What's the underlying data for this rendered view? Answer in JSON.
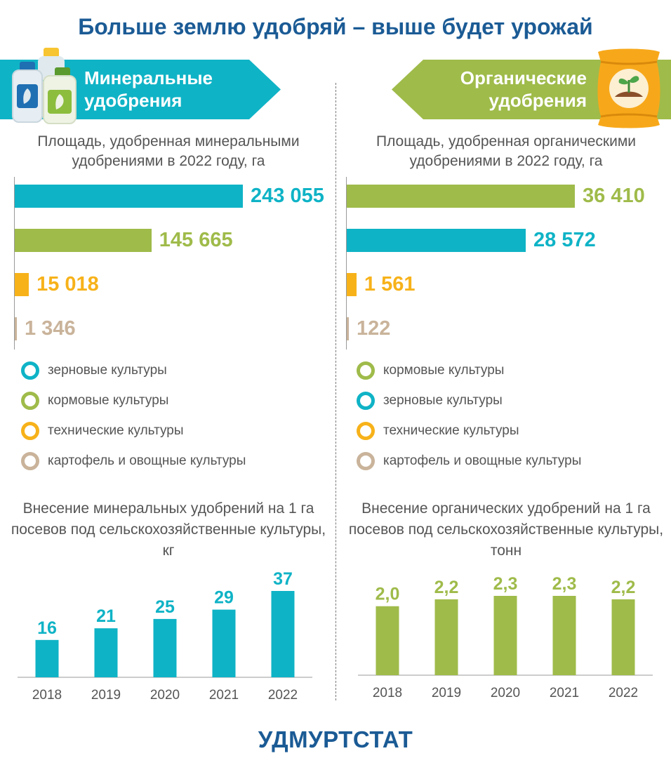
{
  "title": "Больше землю удобряй – выше будет урожай",
  "footer": "УДМУРТСТАТ",
  "colors": {
    "title": "#1b5b95",
    "teal": "#0fb3c6",
    "green": "#9fbb4a",
    "orange": "#f7b21a",
    "beige": "#c9b39a"
  },
  "mineral": {
    "banner": "Минеральные удобрения",
    "icon": "fertilizer-bottles-icon",
    "area_title": "Площадь, удобренная минеральными удобрениями в 2022 году, га",
    "legend": [
      {
        "label": "зерновые культуры",
        "color": "#0fb3c6"
      },
      {
        "label": "кормовые культуры",
        "color": "#9fbb4a"
      },
      {
        "label": "технические культуры",
        "color": "#f7b21a"
      },
      {
        "label": "картофель и овощные культуры",
        "color": "#c9b39a"
      }
    ],
    "per_ha_title": "Внесение минеральных удобрений на 1 га посевов под сельскохозяйственные культуры, кг"
  },
  "organic": {
    "banner": "Органические удобрения",
    "icon": "fertilizer-bag-icon",
    "area_title": "Площадь, удобренная органическими удобрениями в 2022 году, га",
    "legend": [
      {
        "label": "кормовые культуры",
        "color": "#9fbb4a"
      },
      {
        "label": "зерновые культуры",
        "color": "#0fb3c6"
      },
      {
        "label": "технические культуры",
        "color": "#f7b21a"
      },
      {
        "label": "картофель и овощные культуры",
        "color": "#c9b39a"
      }
    ],
    "per_ha_title": "Внесение органических удобрений на 1 га посевов под сельскохозяйственные культуры, тонн"
  },
  "chart_data": [
    {
      "type": "bar",
      "orientation": "horizontal",
      "title": "Площадь, удобренная минеральными удобрениями в 2022 году, га",
      "categories": [
        "зерновые культуры",
        "кормовые культуры",
        "технические культуры",
        "картофель и овощные культуры"
      ],
      "values": [
        243055,
        145665,
        15018,
        1346
      ],
      "value_labels": [
        "243 055",
        "145 665",
        "15 018",
        "1 346"
      ],
      "colors": [
        "#0fb3c6",
        "#9fbb4a",
        "#f7b21a",
        "#c9b39a"
      ]
    },
    {
      "type": "bar",
      "orientation": "horizontal",
      "title": "Площадь, удобренная органическими удобрениями в 2022 году, га",
      "categories": [
        "кормовые культуры",
        "зерновые культуры",
        "технические культуры",
        "картофель и овощные культуры"
      ],
      "values": [
        36410,
        28572,
        1561,
        122
      ],
      "value_labels": [
        "36 410",
        "28 572",
        "1 561",
        "122"
      ],
      "colors": [
        "#9fbb4a",
        "#0fb3c6",
        "#f7b21a",
        "#c9b39a"
      ]
    },
    {
      "type": "bar",
      "title": "Внесение минеральных удобрений на 1 га посевов под сельскохозяйственные культуры, кг",
      "categories": [
        "2018",
        "2019",
        "2020",
        "2021",
        "2022"
      ],
      "values": [
        16,
        21,
        25,
        29,
        37
      ],
      "value_labels": [
        "16",
        "21",
        "25",
        "29",
        "37"
      ],
      "color": "#0fb3c6",
      "ylim": [
        0,
        37
      ]
    },
    {
      "type": "bar",
      "title": "Внесение органических удобрений на 1 га посевов под сельскохозяйственные культуры, тонн",
      "categories": [
        "2018",
        "2019",
        "2020",
        "2021",
        "2022"
      ],
      "values": [
        2.0,
        2.2,
        2.3,
        2.3,
        2.2
      ],
      "value_labels": [
        "2,0",
        "2,2",
        "2,3",
        "2,3",
        "2,2"
      ],
      "color": "#9fbb4a",
      "ylim": [
        0,
        2.3
      ]
    }
  ]
}
